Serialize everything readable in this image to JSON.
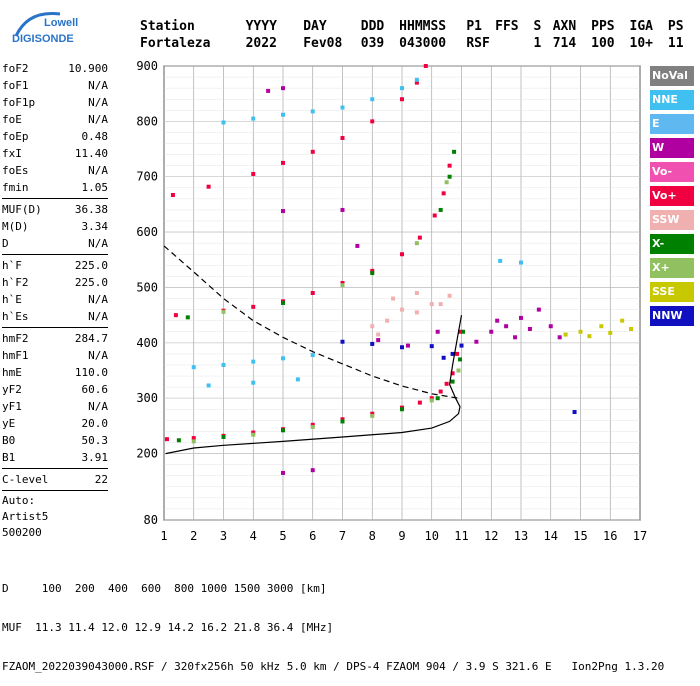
{
  "logo": {
    "line1": "Lowell",
    "line2": "DIGISONDE"
  },
  "header": {
    "labels": [
      "Station",
      "YYYY",
      "DAY",
      "DDD",
      "HHMMSS",
      "P1",
      "FFS",
      "S",
      "AXN",
      "PPS",
      "IGA",
      "PS"
    ],
    "values": [
      "Fortaleza",
      "2022",
      "Fev08",
      "039",
      "043000",
      "RSF",
      "",
      "1",
      "714",
      "100",
      "10+",
      "11"
    ]
  },
  "params": {
    "group1": [
      [
        "foF2",
        "10.900"
      ],
      [
        "foF1",
        "N/A"
      ],
      [
        "foF1p",
        "N/A"
      ],
      [
        "foE",
        "N/A"
      ],
      [
        "foEp",
        "0.48"
      ],
      [
        "fxI",
        "11.40"
      ],
      [
        "foEs",
        "N/A"
      ],
      [
        "fmin",
        "1.05"
      ]
    ],
    "group2": [
      [
        "MUF(D)",
        "36.38"
      ],
      [
        "M(D)",
        "3.34"
      ],
      [
        "D",
        "N/A"
      ]
    ],
    "group3": [
      [
        "h`F",
        "225.0"
      ],
      [
        "h`F2",
        "225.0"
      ],
      [
        "h`E",
        "N/A"
      ],
      [
        "h`Es",
        "N/A"
      ]
    ],
    "group4": [
      [
        "hmF2",
        "284.7"
      ],
      [
        "hmF1",
        "N/A"
      ],
      [
        "hmE",
        "110.0"
      ],
      [
        "yF2",
        "60.6"
      ],
      [
        "yF1",
        "N/A"
      ],
      [
        "yE",
        "20.0"
      ],
      [
        "B0",
        "50.3"
      ],
      [
        "B1",
        "3.91"
      ]
    ],
    "clevel": [
      "C-level",
      "22"
    ],
    "auto": [
      "Auto:",
      "Artist5",
      "500200"
    ]
  },
  "legend": [
    {
      "label": "NoVal",
      "color": "#808080"
    },
    {
      "label": "NNE",
      "color": "#40c0f0"
    },
    {
      "label": "E",
      "color": "#60b8f0"
    },
    {
      "label": "W",
      "color": "#b000a0"
    },
    {
      "label": "Vo-",
      "color": "#f050b0"
    },
    {
      "label": "Vo+",
      "color": "#f00040"
    },
    {
      "label": "SSW",
      "color": "#f0b0b0"
    },
    {
      "label": "X-",
      "color": "#008000"
    },
    {
      "label": "X+",
      "color": "#90c060"
    },
    {
      "label": "SSE",
      "color": "#c8c800"
    },
    {
      "label": "NNW",
      "color": "#1010c0"
    }
  ],
  "footer": {
    "line1": "D     100  200  400  600  800 1000 1500 3000 [km]",
    "line2": "MUF  11.3 11.4 12.0 12.9 14.2 16.2 21.8 36.4 [MHz]",
    "line3": "FZAOM_2022039043000.RSF / 320fx256h 50 kHz 5.0 km / DPS-4 FZAOM 904 / 3.9 S 321.6 E   Ion2Png 1.3.20"
  },
  "chart_data": {
    "type": "scatter",
    "xlim": [
      1,
      17
    ],
    "ylim": [
      80,
      900
    ],
    "x_ticks": [
      1,
      2,
      3,
      4,
      5,
      6,
      7,
      8,
      9,
      10,
      11,
      12,
      13,
      14,
      15,
      16,
      17
    ],
    "y_ticks": [
      80,
      200,
      300,
      400,
      500,
      600,
      700,
      800,
      900
    ],
    "grid": true,
    "series": [
      {
        "name": "Vo+",
        "color": "#f00040",
        "points": [
          [
            1.1,
            226
          ],
          [
            2,
            228
          ],
          [
            3,
            232
          ],
          [
            4,
            238
          ],
          [
            5,
            244
          ],
          [
            6,
            252
          ],
          [
            7,
            262
          ],
          [
            8,
            272
          ],
          [
            9,
            283
          ],
          [
            9.6,
            292
          ],
          [
            10,
            300
          ],
          [
            10.3,
            312
          ],
          [
            10.5,
            326
          ],
          [
            10.7,
            345
          ],
          [
            10.85,
            380
          ],
          [
            10.95,
            420
          ],
          [
            1.4,
            450
          ],
          [
            3,
            458
          ],
          [
            4,
            465
          ],
          [
            5,
            475
          ],
          [
            6,
            490
          ],
          [
            7,
            508
          ],
          [
            8,
            530
          ],
          [
            9,
            560
          ],
          [
            9.6,
            590
          ],
          [
            10.1,
            630
          ],
          [
            10.4,
            670
          ],
          [
            10.6,
            720
          ],
          [
            1.3,
            667
          ],
          [
            2.5,
            682
          ],
          [
            4,
            705
          ],
          [
            5,
            725
          ],
          [
            6,
            745
          ],
          [
            7,
            770
          ],
          [
            8,
            800
          ],
          [
            9,
            840
          ],
          [
            9.5,
            870
          ],
          [
            9.8,
            900
          ]
        ]
      },
      {
        "name": "X-",
        "color": "#008000",
        "points": [
          [
            1.5,
            224
          ],
          [
            3,
            230
          ],
          [
            5,
            242
          ],
          [
            7,
            258
          ],
          [
            9,
            280
          ],
          [
            10.2,
            300
          ],
          [
            10.7,
            330
          ],
          [
            10.95,
            370
          ],
          [
            11.05,
            420
          ],
          [
            1.8,
            446
          ],
          [
            5,
            472
          ],
          [
            8,
            526
          ],
          [
            10.3,
            640
          ],
          [
            10.6,
            700
          ],
          [
            10.75,
            745
          ]
        ]
      },
      {
        "name": "X+",
        "color": "#90c060",
        "points": [
          [
            2,
            222
          ],
          [
            4,
            234
          ],
          [
            6,
            248
          ],
          [
            8,
            268
          ],
          [
            10,
            296
          ],
          [
            10.9,
            350
          ],
          [
            3,
            456
          ],
          [
            7,
            504
          ],
          [
            9.5,
            580
          ],
          [
            10.5,
            690
          ]
        ]
      },
      {
        "name": "NNE",
        "color": "#40c0f0",
        "points": [
          [
            2,
            356
          ],
          [
            3,
            360
          ],
          [
            4,
            366
          ],
          [
            5,
            372
          ],
          [
            6,
            378
          ],
          [
            2.5,
            323
          ],
          [
            4,
            328
          ],
          [
            5.5,
            334
          ],
          [
            3,
            798
          ],
          [
            4,
            805
          ],
          [
            5,
            812
          ],
          [
            6,
            818
          ],
          [
            7,
            825
          ],
          [
            8,
            840
          ],
          [
            9,
            860
          ],
          [
            9.5,
            875
          ],
          [
            12.3,
            548
          ],
          [
            13,
            545
          ]
        ]
      },
      {
        "name": "W",
        "color": "#b000a0",
        "points": [
          [
            11.5,
            402
          ],
          [
            12,
            420
          ],
          [
            12.2,
            440
          ],
          [
            12.5,
            430
          ],
          [
            12.8,
            410
          ],
          [
            13,
            445
          ],
          [
            13.3,
            425
          ],
          [
            13.6,
            460
          ],
          [
            14,
            430
          ],
          [
            14.3,
            410
          ],
          [
            9.2,
            395
          ],
          [
            10.2,
            420
          ],
          [
            8.2,
            405
          ],
          [
            5,
            638
          ],
          [
            7,
            640
          ],
          [
            5,
            860
          ],
          [
            4.5,
            855
          ],
          [
            7.5,
            575
          ],
          [
            5,
            165
          ],
          [
            6,
            170
          ]
        ]
      },
      {
        "name": "SSW",
        "color": "#f0b0b0",
        "points": [
          [
            8,
            430
          ],
          [
            8.5,
            440
          ],
          [
            9,
            460
          ],
          [
            9.5,
            455
          ],
          [
            10,
            470
          ],
          [
            8.7,
            480
          ],
          [
            9.5,
            490
          ],
          [
            8.2,
            415
          ],
          [
            10.3,
            470
          ],
          [
            10.6,
            485
          ]
        ]
      },
      {
        "name": "SSE",
        "color": "#c8c800",
        "points": [
          [
            14.5,
            415
          ],
          [
            15,
            420
          ],
          [
            15.3,
            412
          ],
          [
            15.7,
            430
          ],
          [
            16,
            418
          ],
          [
            16.4,
            440
          ],
          [
            16.7,
            425
          ]
        ]
      },
      {
        "name": "NNW",
        "color": "#1010c0",
        "points": [
          [
            7,
            402
          ],
          [
            8,
            398
          ],
          [
            9,
            392
          ],
          [
            10,
            394
          ],
          [
            11,
            395
          ],
          [
            10.4,
            373
          ],
          [
            10.7,
            380
          ],
          [
            14.8,
            275
          ]
        ]
      }
    ],
    "profile_curve": [
      [
        1.05,
        200
      ],
      [
        2,
        210
      ],
      [
        3,
        215
      ],
      [
        5,
        222
      ],
      [
        7,
        230
      ],
      [
        9,
        238
      ],
      [
        10,
        246
      ],
      [
        10.6,
        258
      ],
      [
        10.9,
        272
      ],
      [
        10.95,
        284.7
      ],
      [
        10.8,
        300
      ],
      [
        10.6,
        325
      ],
      [
        10.7,
        360
      ],
      [
        10.9,
        420
      ],
      [
        11.0,
        450
      ]
    ],
    "dashed_curve": [
      [
        1,
        575
      ],
      [
        2,
        528
      ],
      [
        3,
        480
      ],
      [
        4,
        440
      ],
      [
        5,
        410
      ],
      [
        6,
        384
      ],
      [
        7,
        362
      ],
      [
        8,
        340
      ],
      [
        9,
        322
      ],
      [
        10,
        308
      ],
      [
        10.9,
        300
      ]
    ]
  }
}
